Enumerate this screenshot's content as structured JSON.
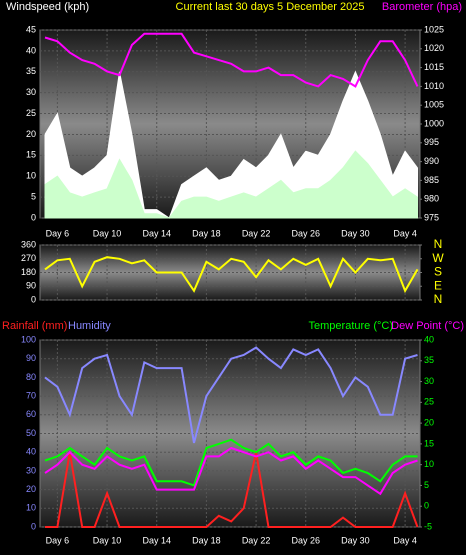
{
  "chart_data": [
    {
      "type": "line",
      "title": "Current last 30 days 5 December 2025",
      "ylabel": "Windspeed (kph)",
      "y2label": "Barometer (hpa)",
      "x": [
        5,
        6,
        7,
        8,
        9,
        10,
        11,
        12,
        13,
        14,
        15,
        16,
        17,
        18,
        19,
        20,
        21,
        22,
        23,
        24,
        25,
        26,
        27,
        28,
        29,
        30,
        31,
        32,
        33,
        34,
        35
      ],
      "xlim": [
        4.6,
        35.2
      ],
      "xticks": [
        {
          "value": 6,
          "label": "Day 6"
        },
        {
          "value": 10,
          "label": "Day 10"
        },
        {
          "value": 14,
          "label": "Day 14"
        },
        {
          "value": 18,
          "label": "Day 18"
        },
        {
          "value": 22,
          "label": "Day 22"
        },
        {
          "value": 26,
          "label": "Day 26"
        },
        {
          "value": 30,
          "label": "Day 30"
        },
        {
          "value": 34,
          "label": "Day 4"
        }
      ],
      "ylim": [
        0,
        45
      ],
      "yticks": [
        0,
        5,
        10,
        15,
        20,
        25,
        30,
        35,
        40,
        45
      ],
      "y2lim": [
        975,
        1025
      ],
      "y2ticks": [
        975,
        980,
        985,
        990,
        995,
        1000,
        1005,
        1010,
        1015,
        1020,
        1025
      ],
      "grid": true,
      "series": [
        {
          "kind": "area",
          "color": "#ffffff",
          "values": [
            20,
            25,
            12,
            10,
            12,
            15,
            35,
            20,
            2,
            2,
            0,
            8,
            10,
            12,
            9,
            10,
            14,
            12,
            15,
            20,
            12,
            16,
            15,
            20,
            28,
            35,
            28,
            20,
            10,
            16,
            12
          ]
        },
        {
          "kind": "area",
          "color": "#ccffcc",
          "values": [
            8,
            10,
            6,
            5,
            6,
            7,
            14,
            9,
            1,
            1,
            0,
            4,
            5,
            5,
            4,
            5,
            6,
            5,
            7,
            9,
            6,
            7,
            7,
            9,
            12,
            16,
            13,
            9,
            5,
            7,
            5
          ]
        },
        {
          "kind": "line",
          "axis": "y2",
          "color": "#ff00ff",
          "values": [
            1023,
            1022,
            1019,
            1017,
            1016,
            1014,
            1013,
            1021,
            1024,
            1024,
            1024,
            1024,
            1019,
            1018,
            1017,
            1016,
            1014,
            1014,
            1015,
            1013,
            1013,
            1011,
            1010,
            1013,
            1012,
            1010,
            1017,
            1022,
            1022,
            1017,
            1010
          ]
        }
      ]
    },
    {
      "type": "line",
      "x": [
        5,
        6,
        7,
        8,
        9,
        10,
        11,
        12,
        13,
        14,
        15,
        16,
        17,
        18,
        19,
        20,
        21,
        22,
        23,
        24,
        25,
        26,
        27,
        28,
        29,
        30,
        31,
        32,
        33,
        34,
        35
      ],
      "xlim": [
        4.6,
        35.2
      ],
      "xticks": [
        {
          "value": 6,
          "label": "Day 6"
        },
        {
          "value": 10,
          "label": "Day 10"
        },
        {
          "value": 14,
          "label": "Day 14"
        },
        {
          "value": 18,
          "label": "Day 18"
        },
        {
          "value": 22,
          "label": "Day 22"
        },
        {
          "value": 26,
          "label": "Day 26"
        },
        {
          "value": 30,
          "label": "Day 30"
        },
        {
          "value": 34,
          "label": "Day 4"
        }
      ],
      "ylim": [
        0,
        360
      ],
      "yticks": [
        0,
        90,
        180,
        270,
        360
      ],
      "y2lim": [
        0,
        360
      ],
      "y2ticks": [
        {
          "value": 0,
          "label": "N"
        },
        {
          "value": 90,
          "label": "E"
        },
        {
          "value": 180,
          "label": "S"
        },
        {
          "value": 270,
          "label": "W"
        },
        {
          "value": 360,
          "label": "N"
        }
      ],
      "grid": true,
      "series": [
        {
          "kind": "line",
          "color": "#ffff00",
          "values": [
            200,
            260,
            270,
            90,
            250,
            280,
            270,
            240,
            260,
            180,
            180,
            180,
            60,
            250,
            200,
            270,
            250,
            150,
            260,
            200,
            270,
            230,
            270,
            90,
            270,
            180,
            270,
            260,
            270,
            60,
            200
          ]
        }
      ]
    },
    {
      "type": "line",
      "x": [
        5,
        6,
        7,
        8,
        9,
        10,
        11,
        12,
        13,
        14,
        15,
        16,
        17,
        18,
        19,
        20,
        21,
        22,
        23,
        24,
        25,
        26,
        27,
        28,
        29,
        30,
        31,
        32,
        33,
        34,
        35
      ],
      "xlim": [
        4.6,
        35.2
      ],
      "xticks": [
        {
          "value": 6,
          "label": "Day 6"
        },
        {
          "value": 10,
          "label": "Day 10"
        },
        {
          "value": 14,
          "label": "Day 14"
        },
        {
          "value": 18,
          "label": "Day 18"
        },
        {
          "value": 22,
          "label": "Day 22"
        },
        {
          "value": 26,
          "label": "Day 26"
        },
        {
          "value": 30,
          "label": "Day 30"
        },
        {
          "value": 34,
          "label": "Day 4"
        }
      ],
      "ylim": [
        0,
        100
      ],
      "yticks": [
        0,
        10,
        20,
        30,
        40,
        50,
        60,
        70,
        80,
        90,
        100
      ],
      "y2lim": [
        -5,
        40
      ],
      "y2ticks": [
        -5,
        0,
        5,
        10,
        15,
        20,
        25,
        30,
        35,
        40
      ],
      "grid": true,
      "series": [
        {
          "name": "Rainfall (mm)",
          "kind": "line",
          "color": "#ff2020",
          "values": [
            0,
            0,
            40,
            0,
            0,
            18,
            0,
            0,
            0,
            0,
            0,
            0,
            0,
            0,
            6,
            3,
            10,
            40,
            0,
            0,
            0,
            0,
            0,
            0,
            5,
            0,
            0,
            0,
            0,
            18,
            0
          ]
        },
        {
          "name": "Humidity",
          "kind": "line",
          "color": "#8888ff",
          "values": [
            80,
            75,
            60,
            85,
            90,
            92,
            70,
            60,
            88,
            85,
            85,
            85,
            45,
            70,
            80,
            90,
            92,
            96,
            90,
            85,
            95,
            92,
            95,
            85,
            70,
            80,
            75,
            60,
            60,
            90,
            92
          ]
        },
        {
          "name": "Temperature (°C)",
          "kind": "line",
          "axis": "y2",
          "color": "#00ff00",
          "values": [
            11,
            12,
            14,
            12,
            10,
            14,
            12,
            11,
            12,
            6,
            6,
            6,
            5,
            14,
            15,
            16,
            14,
            13,
            15,
            12,
            13,
            10,
            12,
            11,
            8,
            9,
            8,
            6,
            10,
            12,
            12
          ]
        },
        {
          "name": "Dew Point (°C)",
          "kind": "line",
          "axis": "y2",
          "color": "#ff00ff",
          "values": [
            8,
            10,
            13,
            10,
            9,
            12,
            10,
            9,
            10,
            4,
            4,
            4,
            4,
            12,
            12,
            14,
            13,
            12,
            13,
            11,
            12,
            9,
            11,
            9,
            7,
            7,
            5,
            3,
            8,
            10,
            11
          ]
        }
      ]
    }
  ]
}
